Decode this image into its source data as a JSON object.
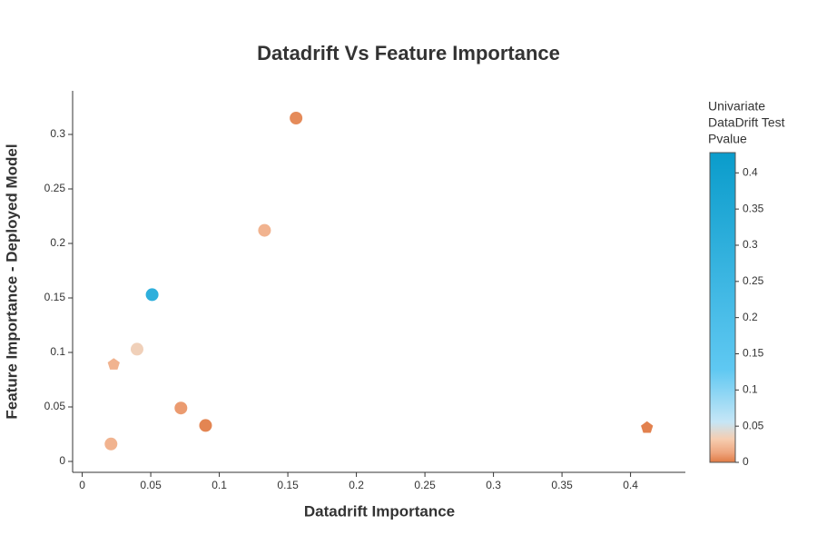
{
  "chart_data": {
    "type": "scatter",
    "title": "Datadrift Vs Feature Importance",
    "x_label": "Datadrift Importance",
    "y_label": "Feature Importance - Deployed Model",
    "x": [
      0.156,
      0.133,
      0.051,
      0.04,
      0.023,
      0.072,
      0.09,
      0.021,
      0.412
    ],
    "values": [
      0.315,
      0.212,
      0.153,
      0.103,
      0.089,
      0.049,
      0.033,
      0.016,
      0.031
    ],
    "color_values": [
      0.005,
      0.02,
      0.3,
      0.035,
      0.02,
      0.01,
      0.003,
      0.02,
      0.002
    ],
    "symbols": [
      "circle",
      "circle",
      "circle",
      "circle",
      "pentagon",
      "circle",
      "circle",
      "circle",
      "pentagon"
    ],
    "xlim": [
      -0.007,
      0.44
    ],
    "ylim": [
      -0.01,
      0.34
    ],
    "xticks": [
      0,
      0.05,
      0.1,
      0.15,
      0.2,
      0.25,
      0.3,
      0.35,
      0.4
    ],
    "yticks": [
      0,
      0.05,
      0.1,
      0.15,
      0.2,
      0.25,
      0.3
    ],
    "colorbar": {
      "title": [
        "Univariate",
        "DataDrift Test",
        "Pvalue"
      ],
      "lim": [
        0,
        0.428
      ],
      "ticks": [
        0,
        0.05,
        0.1,
        0.15,
        0.2,
        0.25,
        0.3,
        0.35,
        0.4
      ],
      "colorscale": [
        [
          0,
          "#e07b45"
        ],
        [
          0.03,
          "#eea47c"
        ],
        [
          0.075,
          "#f6cdb0"
        ],
        [
          0.13,
          "#c6e6f6"
        ],
        [
          0.3,
          "#5fc8f2"
        ],
        [
          1,
          "#0a9ccb"
        ]
      ]
    }
  }
}
